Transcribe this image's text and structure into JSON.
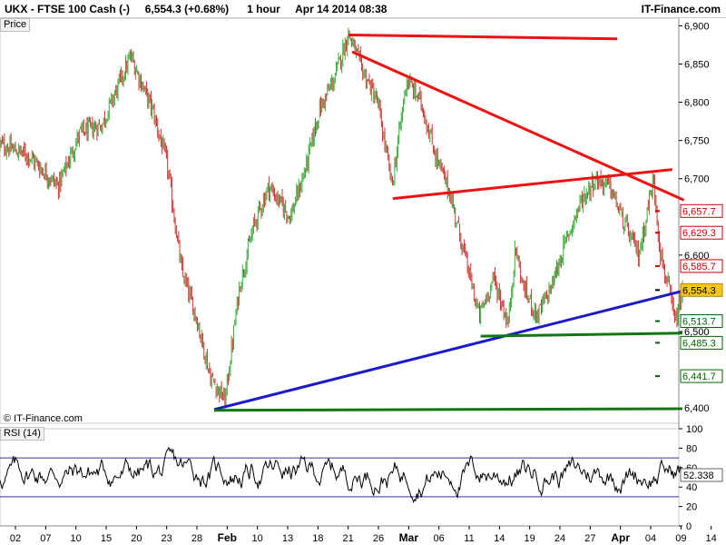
{
  "header": {
    "symbol": "UKX",
    "separator": "-",
    "name": "FTSE 100 Cash (-)",
    "price": "6,554.3",
    "change": "(+0.68%)",
    "interval": "1 hour",
    "datetime": "Apr 14 2014 08:38",
    "brand": "IT-Finance.com"
  },
  "copyright": "© IT-Finance.com",
  "colors": {
    "up": "#33aa33",
    "down": "#cc3333",
    "resistance": "#ee1111",
    "trend_blue": "#1a1acc",
    "support_green": "#117711",
    "current_badge": "#f5c518"
  },
  "chart_data": [
    {
      "type": "candlestick",
      "pane": "price",
      "panel_label": "Price",
      "ylim": [
        6380,
        6910
      ],
      "yticks": [
        {
          "value": 6900,
          "label": "6,900"
        },
        {
          "value": 6850,
          "label": "6,850"
        },
        {
          "value": 6800,
          "label": "6,800"
        },
        {
          "value": 6750,
          "label": "6,750"
        },
        {
          "value": 6700,
          "label": "6,700"
        },
        {
          "value": 6600,
          "label": "6,600"
        },
        {
          "value": 6500,
          "label": "6,500"
        },
        {
          "value": 6400,
          "label": "6,400"
        }
      ],
      "x_date_labels": [
        "02",
        "07",
        "10",
        "15",
        "20",
        "23",
        "28",
        "Feb",
        "10",
        "13",
        "18",
        "21",
        "26",
        "Mar",
        "06",
        "11",
        "14",
        "19",
        "24",
        "27",
        "Apr",
        "04",
        "09",
        "14"
      ],
      "month_labels": [
        "Feb",
        "Mar",
        "Apr"
      ],
      "price_path": [
        [
          0,
          6745
        ],
        [
          4,
          6730
        ],
        [
          8,
          6690
        ],
        [
          11,
          6760
        ],
        [
          14,
          6770
        ],
        [
          18,
          6860
        ],
        [
          21,
          6790
        ],
        [
          23,
          6720
        ],
        [
          25,
          6580
        ],
        [
          27,
          6520
        ],
        [
          29,
          6440
        ],
        [
          31,
          6410
        ],
        [
          33,
          6560
        ],
        [
          35,
          6640
        ],
        [
          37,
          6690
        ],
        [
          40,
          6650
        ],
        [
          42,
          6710
        ],
        [
          44,
          6790
        ],
        [
          46,
          6830
        ],
        [
          48,
          6890
        ],
        [
          50,
          6840
        ],
        [
          52,
          6800
        ],
        [
          54,
          6690
        ],
        [
          56,
          6830
        ],
        [
          58,
          6800
        ],
        [
          60,
          6730
        ],
        [
          62,
          6680
        ],
        [
          64,
          6600
        ],
        [
          66,
          6520
        ],
        [
          68,
          6570
        ],
        [
          70,
          6510
        ],
        [
          71,
          6610
        ],
        [
          72,
          6560
        ],
        [
          74,
          6520
        ],
        [
          76,
          6560
        ],
        [
          78,
          6620
        ],
        [
          80,
          6670
        ],
        [
          82,
          6700
        ],
        [
          84,
          6690
        ],
        [
          86,
          6640
        ],
        [
          88,
          6600
        ],
        [
          90,
          6700
        ],
        [
          91,
          6600
        ],
        [
          92,
          6560
        ],
        [
          93,
          6510
        ],
        [
          94,
          6550
        ]
      ],
      "total_bars": 620,
      "levels": [
        {
          "value": 6657.7,
          "label": "6,657.7",
          "color": "#cc0000",
          "tag": "red"
        },
        {
          "value": 6629.3,
          "label": "6,629.3",
          "color": "#cc0000",
          "tag": "red"
        },
        {
          "value": 6585.7,
          "label": "6,585.7",
          "color": "#cc0000",
          "tag": "red"
        },
        {
          "value": 6554.3,
          "label": "6,554.3",
          "color": "#000000",
          "tag": "current"
        },
        {
          "value": 6513.7,
          "label": "6,513.7",
          "color": "#006600",
          "tag": "green"
        },
        {
          "value": 6485.3,
          "label": "6,485.3",
          "color": "#006600",
          "tag": "green"
        },
        {
          "value": 6441.7,
          "label": "6,441.7",
          "color": "#006600",
          "tag": "green"
        }
      ],
      "trendlines": [
        {
          "name": "top-resistance",
          "color": "#ee1111",
          "points": [
            [
              48.0,
              6888
            ],
            [
              85.0,
              6883
            ]
          ]
        },
        {
          "name": "falling-resistance",
          "color": "#ee1111",
          "points": [
            [
              48.5,
              6866
            ],
            [
              94.2,
              6672
            ]
          ]
        },
        {
          "name": "rising-resistance",
          "color": "#ee1111",
          "points": [
            [
              54.1,
              6674
            ],
            [
              92.6,
              6712
            ]
          ]
        },
        {
          "name": "rising-support",
          "color": "#1a1acc",
          "points": [
            [
              29.5,
              6398
            ],
            [
              94.0,
              6553
            ]
          ]
        },
        {
          "name": "mid-support",
          "color": "#117711",
          "points": [
            [
              66.2,
              6494
            ],
            [
              94.0,
              6498
            ]
          ]
        },
        {
          "name": "low-support",
          "color": "#117711",
          "points": [
            [
              29.5,
              6397
            ],
            [
              94.0,
              6399
            ]
          ]
        }
      ]
    },
    {
      "type": "line",
      "pane": "rsi",
      "panel_label": "RSI (14)",
      "ylim": [
        0,
        100
      ],
      "yticks": [
        {
          "value": 100,
          "label": "100"
        },
        {
          "value": 80,
          "label": "80"
        },
        {
          "value": 60,
          "label": "60"
        },
        {
          "value": 40,
          "label": "40"
        },
        {
          "value": 20,
          "label": "20"
        },
        {
          "value": 0,
          "label": "0"
        }
      ],
      "bands": [
        70,
        30
      ],
      "last_value": 52.338,
      "last_label": "52.338",
      "total_points": 620
    }
  ]
}
